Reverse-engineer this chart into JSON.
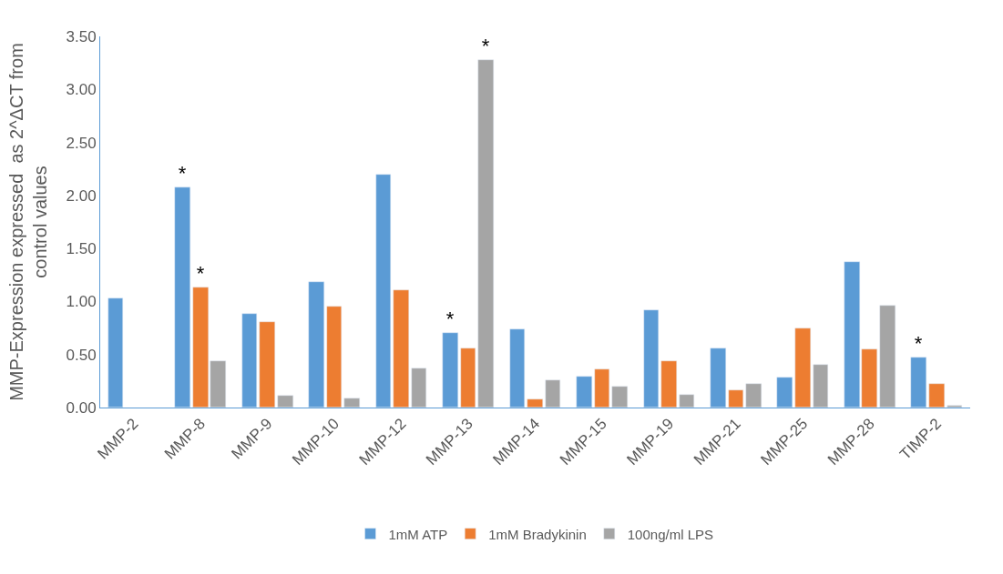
{
  "chart_data": {
    "type": "bar",
    "ylabel": "MMP-Expression expressed  as 2^ΔCT from control values",
    "categories": [
      "MMP-2",
      "MMP-8",
      "MMP-9",
      "MMP-10",
      "MMP-12",
      "MMP-13",
      "MMP-14",
      "MMP-15",
      "MMP-19",
      "MMP-21",
      "MMP-25",
      "MMP-28",
      "TIMP-2"
    ],
    "series": [
      {
        "name": "1mM ATP",
        "color": "#5b9bd5",
        "values": [
          1.03,
          2.08,
          0.88,
          1.18,
          2.2,
          0.7,
          0.74,
          0.29,
          0.92,
          0.56,
          0.28,
          1.37,
          0.47
        ],
        "value_labels": [
          null,
          "*",
          null,
          null,
          null,
          "*",
          null,
          null,
          null,
          null,
          null,
          null,
          "*"
        ]
      },
      {
        "name": "1mM Bradykinin",
        "color": "#ed7d31",
        "values": [
          null,
          1.13,
          0.81,
          0.95,
          1.11,
          0.56,
          0.08,
          0.36,
          0.44,
          0.16,
          0.75,
          0.55,
          0.22
        ],
        "value_labels": [
          null,
          "*",
          null,
          null,
          null,
          null,
          null,
          null,
          null,
          null,
          null,
          null,
          null
        ]
      },
      {
        "name": "100ng/ml LPS",
        "color": "#a5a5a5",
        "values": [
          null,
          0.44,
          0.11,
          0.09,
          0.37,
          3.28,
          0.26,
          0.2,
          0.12,
          0.22,
          0.4,
          0.96,
          0.02
        ],
        "value_labels": [
          null,
          null,
          null,
          null,
          null,
          "*",
          null,
          null,
          null,
          null,
          null,
          null,
          null
        ]
      }
    ],
    "ylim": [
      0,
      3.5
    ],
    "yticks": [
      {
        "value": 0,
        "label": "0.00"
      },
      {
        "value": 0.5,
        "label": "0.50"
      },
      {
        "value": 1,
        "label": "1.00"
      },
      {
        "value": 1.5,
        "label": "1.50"
      },
      {
        "value": 2,
        "label": "2.00"
      },
      {
        "value": 2.5,
        "label": "2.50"
      },
      {
        "value": 3,
        "label": "3.00"
      },
      {
        "value": 3.5,
        "label": "3.50"
      }
    ],
    "legend": "bottom"
  }
}
